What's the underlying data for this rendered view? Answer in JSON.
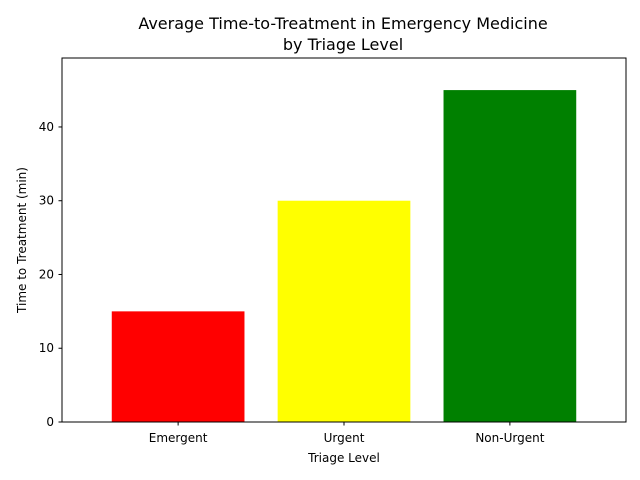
{
  "chart_data": {
    "type": "bar",
    "title": "Average Time-to-Treatment in Emergency Medicine",
    "subtitle": "by Triage Level",
    "xlabel": "Triage Level",
    "ylabel": "Time to Treatment (min)",
    "categories": [
      "Emergent",
      "Urgent",
      "Non-Urgent"
    ],
    "values": [
      15,
      30,
      45
    ],
    "colors": [
      "#ff0000",
      "#ffff00",
      "#008000"
    ],
    "ylim": [
      0,
      49.35
    ],
    "yticks": [
      0,
      10,
      20,
      30,
      40
    ],
    "grid": false,
    "legend": false
  }
}
